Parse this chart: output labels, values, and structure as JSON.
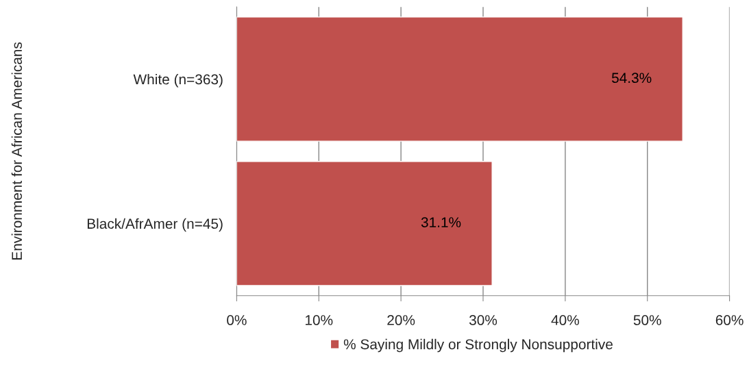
{
  "chart_data": {
    "type": "bar",
    "orientation": "horizontal",
    "ylabel": "Environment for African Americans",
    "categories": [
      "White (n=363)",
      "Black/AfrAmer (n=45)"
    ],
    "series": [
      {
        "name": "% Saying Mildly or Strongly Nonsupportive",
        "color": "#c0504d",
        "values": [
          54.3,
          31.1
        ],
        "value_labels": [
          "54.3%",
          "31.1%"
        ]
      }
    ],
    "xlim": [
      0,
      60
    ],
    "xticks": [
      {
        "value": 0,
        "label": "0%"
      },
      {
        "value": 10,
        "label": "10%"
      },
      {
        "value": 20,
        "label": "20%"
      },
      {
        "value": 30,
        "label": "30%"
      },
      {
        "value": 40,
        "label": "40%"
      },
      {
        "value": 50,
        "label": "50%"
      },
      {
        "value": 60,
        "label": "60%"
      }
    ],
    "grid": "x",
    "legend": "bottom"
  }
}
